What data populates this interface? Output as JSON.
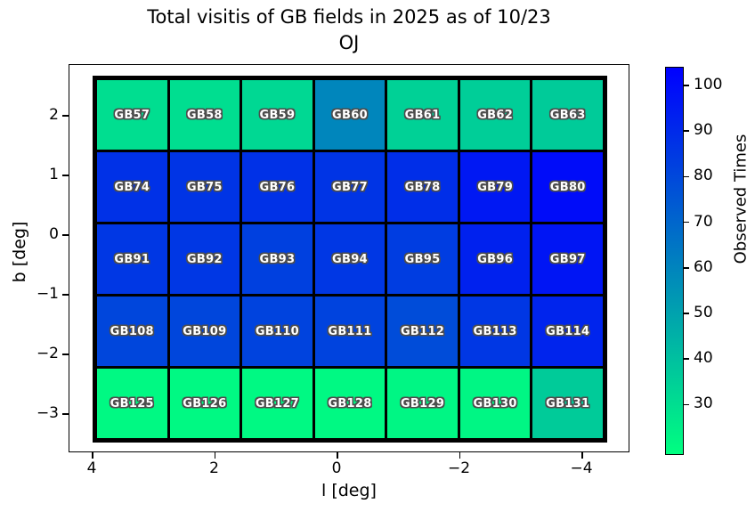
{
  "figure": {
    "title_line1": "Total visitis of GB fields in 2025 as of 10/23",
    "title_line2": "OJ"
  },
  "chart_data": {
    "type": "heatmap",
    "title": "Total visitis of GB fields in 2025 as of 10/23",
    "subtitle": "OJ",
    "xlabel": "l [deg]",
    "ylabel": "b [deg]",
    "x_tick_labels": [
      "4",
      "2",
      "0",
      "−2",
      "−4"
    ],
    "y_tick_labels": [
      "2",
      "1",
      "0",
      "−1",
      "−2",
      "−3"
    ],
    "x_axis_reversed": true,
    "grid_shape": [
      5,
      7
    ],
    "cell_text_color": "#ffffff",
    "cell_border_color": "#000000",
    "colorbar": {
      "label": "Observed Times",
      "tick_values": [
        100,
        90,
        80,
        70,
        60,
        50,
        40,
        30
      ],
      "vmin": 20,
      "vmax": 104,
      "cmap": "winter_r",
      "color_low": "#00ff80",
      "color_high": "#0000ff"
    },
    "rows": [
      [
        {
          "label": "GB57",
          "value": 31
        },
        {
          "label": "GB58",
          "value": 31
        },
        {
          "label": "GB59",
          "value": 33
        },
        {
          "label": "GB60",
          "value": 60
        },
        {
          "label": "GB61",
          "value": 35
        },
        {
          "label": "GB62",
          "value": 36
        },
        {
          "label": "GB63",
          "value": 37
        }
      ],
      [
        {
          "label": "GB74",
          "value": 88
        },
        {
          "label": "GB75",
          "value": 87
        },
        {
          "label": "GB76",
          "value": 88
        },
        {
          "label": "GB77",
          "value": 87
        },
        {
          "label": "GB78",
          "value": 89
        },
        {
          "label": "GB79",
          "value": 96
        },
        {
          "label": "GB80",
          "value": 100
        }
      ],
      [
        {
          "label": "GB91",
          "value": 86
        },
        {
          "label": "GB92",
          "value": 86
        },
        {
          "label": "GB93",
          "value": 83
        },
        {
          "label": "GB94",
          "value": 86
        },
        {
          "label": "GB95",
          "value": 84
        },
        {
          "label": "GB96",
          "value": 93
        },
        {
          "label": "GB97",
          "value": 97
        }
      ],
      [
        {
          "label": "GB108",
          "value": 81
        },
        {
          "label": "GB109",
          "value": 81
        },
        {
          "label": "GB110",
          "value": 82
        },
        {
          "label": "GB111",
          "value": 82
        },
        {
          "label": "GB112",
          "value": 79
        },
        {
          "label": "GB113",
          "value": 86
        },
        {
          "label": "GB114",
          "value": 92
        }
      ],
      [
        {
          "label": "GB125",
          "value": 22
        },
        {
          "label": "GB126",
          "value": 22
        },
        {
          "label": "GB127",
          "value": 22
        },
        {
          "label": "GB128",
          "value": 22
        },
        {
          "label": "GB129",
          "value": 23
        },
        {
          "label": "GB130",
          "value": 23
        },
        {
          "label": "GB131",
          "value": 37
        }
      ]
    ]
  }
}
